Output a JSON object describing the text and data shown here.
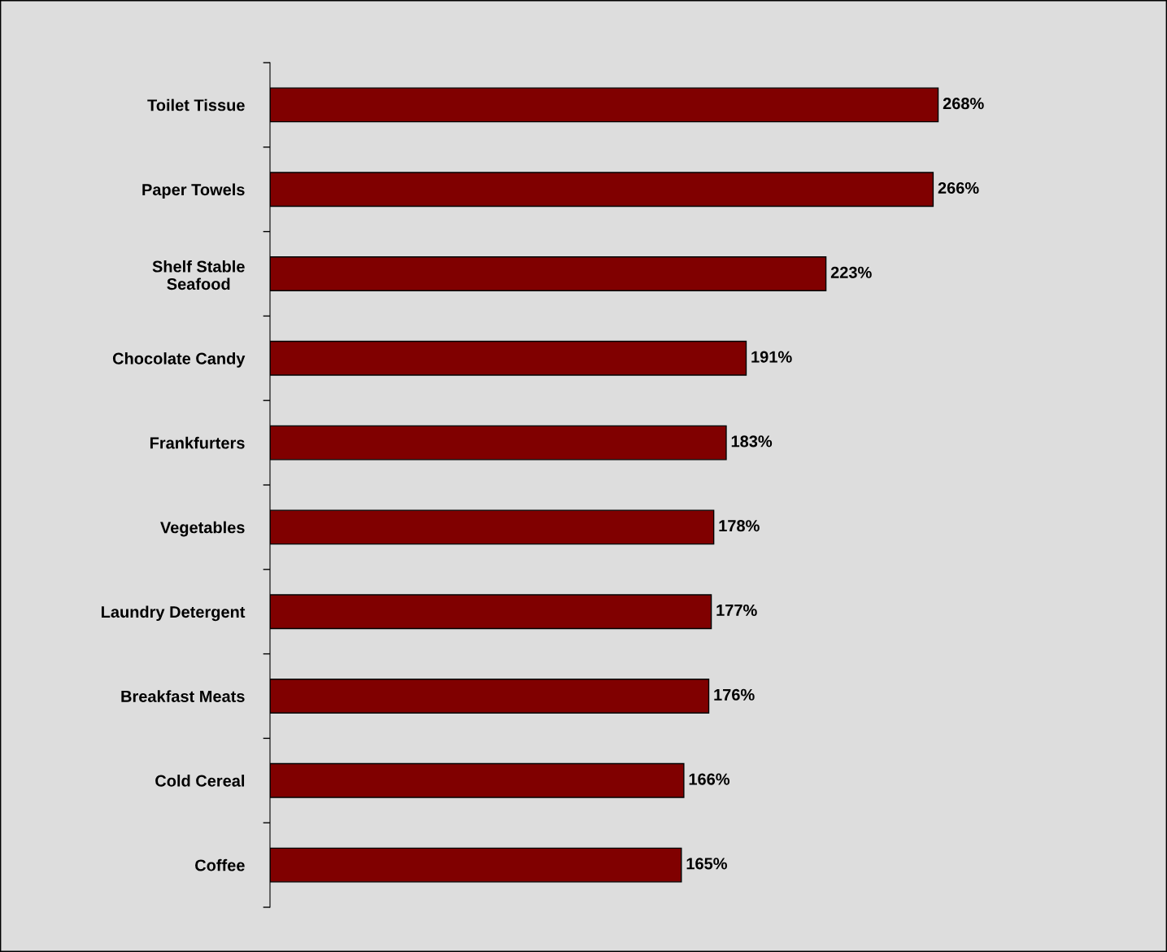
{
  "chart_data": {
    "type": "bar",
    "orientation": "horizontal",
    "categories": [
      "Toilet Tissue",
      "Paper Towels",
      "Shelf Stable\nSeafood",
      "Chocolate Candy",
      "Frankfurters",
      "Vegetables",
      "Laundry Detergent",
      "Breakfast Meats",
      "Cold Cereal",
      "Coffee"
    ],
    "values": [
      268,
      266,
      223,
      191,
      183,
      178,
      177,
      176,
      166,
      165
    ],
    "value_labels": [
      "268%",
      "266%",
      "223%",
      "191%",
      "183%",
      "178%",
      "177%",
      "176%",
      "166%",
      "165%"
    ],
    "color": "#800000",
    "grid": false,
    "legend": false
  }
}
